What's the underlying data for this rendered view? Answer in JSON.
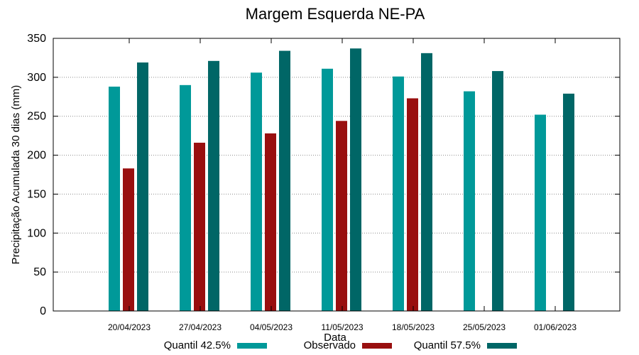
{
  "chart_data": {
    "type": "bar",
    "title": "Margem Esquerda NE-PA",
    "xlabel": "Data",
    "ylabel": "Precipitação Acumulada 30 dias (mm)",
    "ylim": [
      0,
      350
    ],
    "yticks": [
      0,
      50,
      100,
      150,
      200,
      250,
      300,
      350
    ],
    "categories": [
      "20/04/2023",
      "27/04/2023",
      "04/05/2023",
      "11/05/2023",
      "18/05/2023",
      "25/05/2023",
      "01/06/2023"
    ],
    "series": [
      {
        "name": "Quantil 42.5%",
        "color": "#009999",
        "values": [
          288,
          290,
          306,
          311,
          301,
          282,
          252
        ]
      },
      {
        "name": "Observado",
        "color": "#990f0f",
        "values": [
          183,
          216,
          228,
          244,
          273,
          null,
          null
        ]
      },
      {
        "name": "Quantil 57.5%",
        "color": "#006666",
        "values": [
          319,
          321,
          334,
          337,
          331,
          308,
          279
        ]
      }
    ],
    "grid": true,
    "legend_position": "bottom"
  }
}
